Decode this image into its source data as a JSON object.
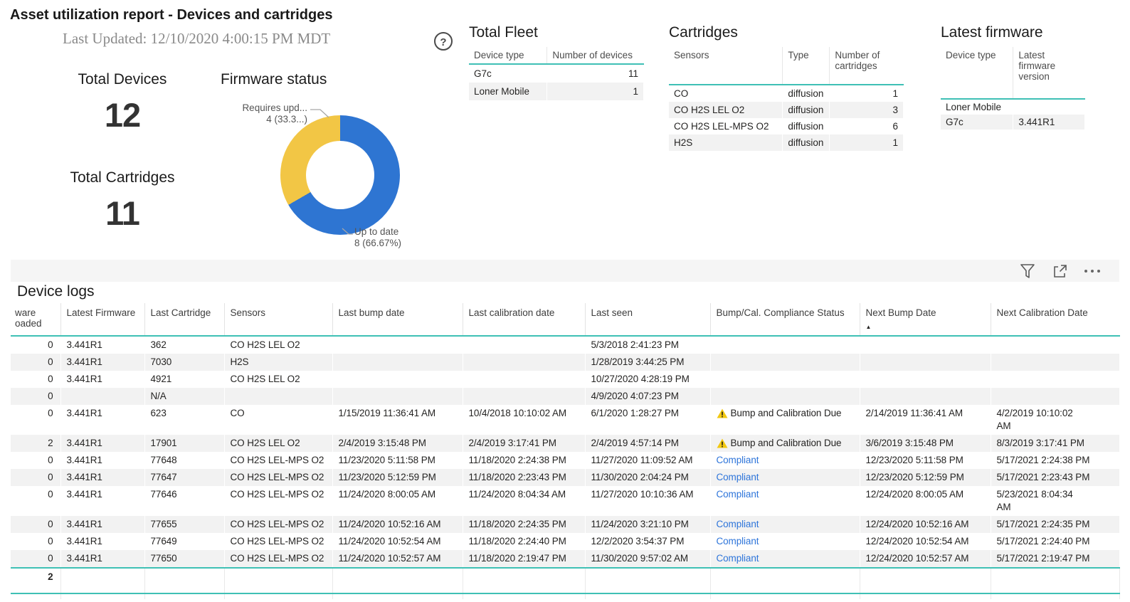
{
  "colors": {
    "accent": "#3fc0b5",
    "donut_blue": "#2e75d2",
    "donut_yellow": "#f2c645",
    "link": "#2e75da",
    "warning": "#f2c811",
    "row_alt": "#f2f2f2"
  },
  "report": {
    "title": "Asset utilization report - Devices and cartridges",
    "last_updated": "Last Updated: 12/10/2020 4:00:15 PM MDT",
    "help_glyph": "?"
  },
  "kpis": {
    "total_devices": {
      "label": "Total Devices",
      "value": "12"
    },
    "total_cartridges": {
      "label": "Total Cartridges",
      "value": "11"
    }
  },
  "chart_data": {
    "type": "pie",
    "subtype": "donut",
    "title": "Firmware status",
    "legend_position": "callouts",
    "slices": [
      {
        "label": "Up to date",
        "value": 8,
        "pct": 66.67,
        "color": "#2e75d2"
      },
      {
        "label": "Requires update",
        "value": 4,
        "pct": 33.33,
        "color": "#f2c645"
      }
    ],
    "callouts": [
      {
        "lines": [
          "Requires upd...",
          "4 (33.3...)"
        ]
      },
      {
        "lines": [
          "Up to date",
          "8 (66.67%)"
        ]
      }
    ]
  },
  "total_fleet": {
    "title": "Total Fleet",
    "columns": [
      {
        "label": "Device type",
        "align": "left"
      },
      {
        "label": "Number of devices",
        "align": "right"
      }
    ],
    "rows": [
      [
        "G7c",
        "11"
      ],
      [
        "Loner Mobile",
        "1"
      ]
    ]
  },
  "cartridges": {
    "title": "Cartridges",
    "columns": [
      {
        "label": "Sensors",
        "align": "left"
      },
      {
        "label": "Type",
        "align": "left"
      },
      {
        "label": "Number of\ncartridges",
        "align": "right"
      }
    ],
    "rows": [
      [
        "CO",
        "diffusion",
        "1"
      ],
      [
        "CO H2S LEL O2",
        "diffusion",
        "3"
      ],
      [
        "CO H2S LEL-MPS O2",
        "diffusion",
        "6"
      ],
      [
        "H2S",
        "diffusion",
        "1"
      ]
    ]
  },
  "latest_firmware": {
    "title": "Latest firmware",
    "columns": [
      {
        "label": "Device type",
        "align": "left"
      },
      {
        "label": "Latest\nfirmware\nversion",
        "align": "left"
      }
    ],
    "rows": [
      [
        "Loner Mobile",
        ""
      ],
      [
        "G7c",
        "3.441R1"
      ]
    ]
  },
  "device_logs": {
    "title": "Device logs",
    "columns": [
      {
        "label": "ware\noaded",
        "align": "right"
      },
      {
        "label": "Latest Firmware",
        "align": "left"
      },
      {
        "label": "Last Cartridge",
        "align": "left"
      },
      {
        "label": "Sensors",
        "align": "left"
      },
      {
        "label": "Last bump date",
        "align": "left"
      },
      {
        "label": "Last calibration date",
        "align": "left"
      },
      {
        "label": "Last seen",
        "align": "left"
      },
      {
        "label": "Bump/Cal. Compliance Status",
        "align": "left"
      },
      {
        "label": "Next Bump Date",
        "align": "left",
        "sort": "asc"
      },
      {
        "label": "Next Calibration Date",
        "align": "left"
      }
    ],
    "rows": [
      {
        "cells": [
          "0",
          "3.441R1",
          "362",
          "CO H2S LEL O2",
          "",
          "",
          "5/3/2018 2:41:23 PM",
          "",
          "",
          ""
        ],
        "status": ""
      },
      {
        "cells": [
          "0",
          "3.441R1",
          "7030",
          "H2S",
          "",
          "",
          "1/28/2019 3:44:25 PM",
          "",
          "",
          ""
        ],
        "status": ""
      },
      {
        "cells": [
          "0",
          "3.441R1",
          "4921",
          "CO H2S LEL O2",
          "",
          "",
          "10/27/2020 4:28:19 PM",
          "",
          "",
          ""
        ],
        "status": ""
      },
      {
        "cells": [
          "0",
          "",
          "N/A",
          "",
          "",
          "",
          "4/9/2020 4:07:23 PM",
          "",
          "",
          ""
        ],
        "status": ""
      },
      {
        "cells": [
          "0",
          "3.441R1",
          "623",
          "CO",
          "1/15/2019 11:36:41 AM",
          "10/4/2018 10:10:02 AM",
          "6/1/2020 1:28:27 PM",
          "Bump and Calibration Due",
          "2/14/2019 11:36:41 AM",
          "4/2/2019 10:10:02\nAM"
        ],
        "status": "warning"
      },
      {
        "cells": [
          "2",
          "3.441R1",
          "17901",
          "CO H2S LEL O2",
          "2/4/2019 3:15:48 PM",
          "2/4/2019 3:17:41 PM",
          "2/4/2019 4:57:14 PM",
          "Bump and Calibration Due",
          "3/6/2019 3:15:48 PM",
          "8/3/2019 3:17:41 PM"
        ],
        "status": "warning"
      },
      {
        "cells": [
          "0",
          "3.441R1",
          "77648",
          "CO H2S LEL-MPS O2",
          "11/23/2020 5:11:58 PM",
          "11/18/2020 2:24:38 PM",
          "11/27/2020 11:09:52 AM",
          "Compliant",
          "12/23/2020 5:11:58 PM",
          "5/17/2021 2:24:38 PM"
        ],
        "status": "compliant"
      },
      {
        "cells": [
          "0",
          "3.441R1",
          "77647",
          "CO H2S LEL-MPS O2",
          "11/23/2020 5:12:59 PM",
          "11/18/2020 2:23:43 PM",
          "11/30/2020 2:04:24 PM",
          "Compliant",
          "12/23/2020 5:12:59 PM",
          "5/17/2021 2:23:43 PM"
        ],
        "status": "compliant"
      },
      {
        "cells": [
          "0",
          "3.441R1",
          "77646",
          "CO H2S LEL-MPS O2",
          "11/24/2020 8:00:05 AM",
          "11/24/2020 8:04:34 AM",
          "11/27/2020 10:10:36 AM",
          "Compliant",
          "12/24/2020 8:00:05 AM",
          "5/23/2021 8:04:34\nAM"
        ],
        "status": "compliant"
      },
      {
        "cells": [
          "0",
          "3.441R1",
          "77655",
          "CO H2S LEL-MPS O2",
          "11/24/2020 10:52:16 AM",
          "11/18/2020 2:24:35 PM",
          "11/24/2020 3:21:10 PM",
          "Compliant",
          "12/24/2020 10:52:16 AM",
          "5/17/2021 2:24:35 PM"
        ],
        "status": "compliant"
      },
      {
        "cells": [
          "0",
          "3.441R1",
          "77649",
          "CO H2S LEL-MPS O2",
          "11/24/2020 10:52:54 AM",
          "11/18/2020 2:24:40 PM",
          "12/2/2020 3:54:37 PM",
          "Compliant",
          "12/24/2020 10:52:54 AM",
          "5/17/2021 2:24:40 PM"
        ],
        "status": "compliant"
      },
      {
        "cells": [
          "0",
          "3.441R1",
          "77650",
          "CO H2S LEL-MPS O2",
          "11/24/2020 10:52:57 AM",
          "11/18/2020 2:19:47 PM",
          "11/30/2020 9:57:02 AM",
          "Compliant",
          "12/24/2020 10:52:57 AM",
          "5/17/2021 2:19:47 PM"
        ],
        "status": "compliant"
      }
    ],
    "total": "2"
  }
}
